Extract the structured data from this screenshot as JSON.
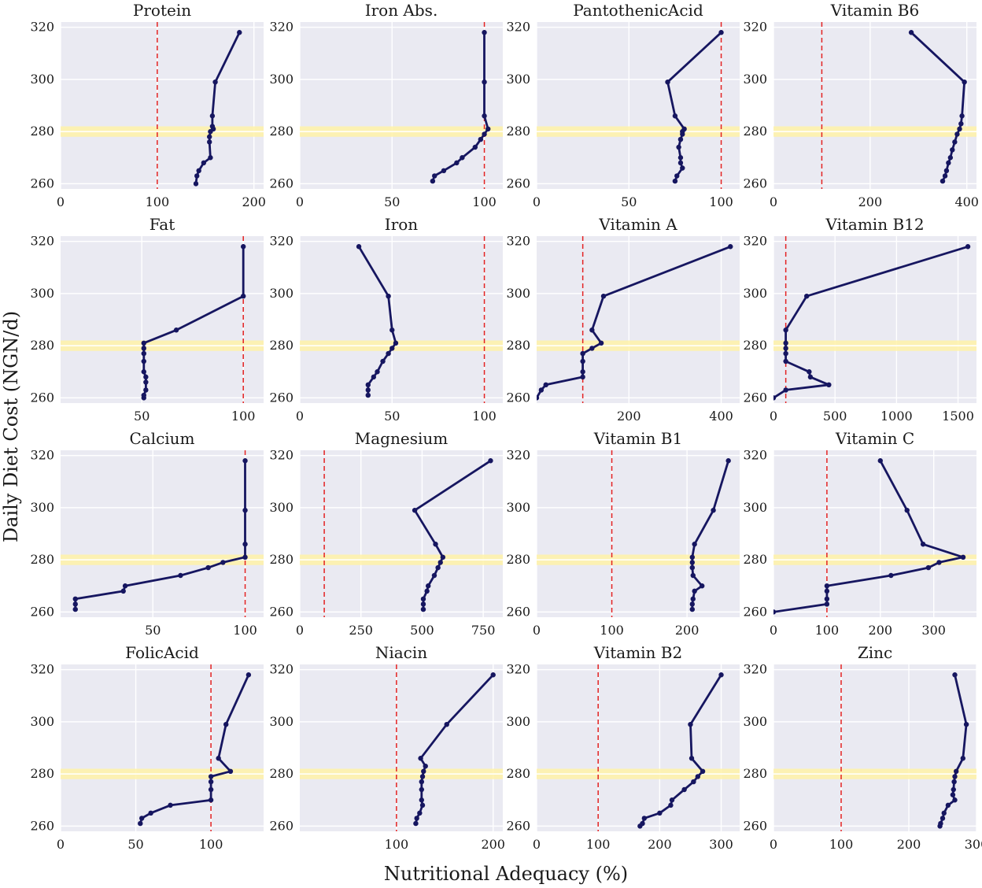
{
  "figure": {
    "xlabel": "Nutritional Adequacy (%)",
    "ylabel": "Daily Diet Cost (NGN/d)",
    "colors": {
      "background": "#eaeaf2",
      "grid": "#ffffff",
      "line": "#161660",
      "marker": "#161660",
      "reference": "#e32222",
      "band": "#fff2a8"
    }
  },
  "chart_data": [
    {
      "type": "line",
      "title": "Protein",
      "ylim": [
        258,
        322
      ],
      "yticks": [
        260,
        280,
        300,
        320
      ],
      "xlim": [
        0,
        210
      ],
      "xticks": [
        0,
        100,
        200
      ],
      "ref_x": 100,
      "band_y": [
        278,
        282
      ],
      "series": [
        {
          "name": "Protein",
          "x": [
            185,
            160,
            157,
            157,
            158,
            155,
            154,
            154,
            155,
            148,
            143,
            141,
            140
          ],
          "y": [
            318,
            299,
            286,
            282,
            281,
            280,
            278,
            276,
            270,
            268,
            265,
            263,
            260
          ]
        }
      ]
    },
    {
      "type": "line",
      "title": "Iron Abs.",
      "ylim": [
        258,
        322
      ],
      "yticks": [
        260,
        280,
        300,
        320
      ],
      "xlim": [
        0,
        110
      ],
      "xticks": [
        0,
        50,
        100
      ],
      "ref_x": 100,
      "band_y": [
        278,
        282
      ],
      "series": [
        {
          "name": "Iron Abs.",
          "x": [
            100,
            100,
            100,
            102,
            100,
            98,
            95,
            88,
            85,
            78,
            73,
            72
          ],
          "y": [
            318,
            299,
            286,
            281,
            279,
            277,
            274,
            270,
            268,
            265,
            263,
            261
          ]
        }
      ]
    },
    {
      "type": "line",
      "title": "PantothenicAcid",
      "ylim": [
        258,
        322
      ],
      "yticks": [
        260,
        280,
        300,
        320
      ],
      "xlim": [
        0,
        110
      ],
      "xticks": [
        0,
        50,
        100
      ],
      "ref_x": 100,
      "band_y": [
        278,
        282
      ],
      "series": [
        {
          "name": "PantothenicAcid",
          "x": [
            100,
            71,
            75,
            80,
            79,
            79,
            78,
            77,
            78,
            78,
            79,
            76,
            75
          ],
          "y": [
            318,
            299,
            286,
            281,
            280,
            279,
            277,
            274,
            270,
            268,
            266,
            263,
            261
          ]
        }
      ]
    },
    {
      "type": "line",
      "title": "Vitamin B6",
      "ylim": [
        258,
        322
      ],
      "yticks": [
        260,
        280,
        300,
        320
      ],
      "xlim": [
        0,
        420
      ],
      "xticks": [
        0,
        200,
        400
      ],
      "ref_x": 100,
      "band_y": [
        278,
        282
      ],
      "series": [
        {
          "name": "Vitamin B6",
          "x": [
            285,
            395,
            390,
            388,
            385,
            380,
            375,
            370,
            366,
            362,
            358,
            355,
            350
          ],
          "y": [
            318,
            299,
            286,
            283,
            281,
            279,
            276,
            273,
            270,
            268,
            265,
            263,
            261
          ]
        }
      ]
    },
    {
      "type": "line",
      "title": "Fat",
      "ylim": [
        258,
        322
      ],
      "yticks": [
        260,
        280,
        300,
        320
      ],
      "xlim": [
        10,
        110
      ],
      "xticks": [
        50,
        100
      ],
      "ref_x": 100,
      "band_y": [
        278,
        282
      ],
      "series": [
        {
          "name": "Fat",
          "x": [
            100,
            100,
            67,
            51,
            51,
            51,
            51,
            51,
            52,
            52,
            52,
            51,
            51
          ],
          "y": [
            318,
            299,
            286,
            281,
            279,
            277,
            274,
            270,
            268,
            266,
            263,
            261,
            260
          ]
        }
      ]
    },
    {
      "type": "line",
      "title": "Iron",
      "ylim": [
        258,
        322
      ],
      "yticks": [
        260,
        280,
        300,
        320
      ],
      "xlim": [
        0,
        110
      ],
      "xticks": [
        0,
        50,
        100
      ],
      "ref_x": 100,
      "band_y": [
        278,
        282
      ],
      "series": [
        {
          "name": "Iron",
          "x": [
            32,
            48,
            50,
            52,
            50,
            48,
            45,
            42,
            40,
            37,
            37,
            37
          ],
          "y": [
            318,
            299,
            286,
            281,
            279,
            277,
            274,
            270,
            268,
            265,
            263,
            261
          ]
        }
      ]
    },
    {
      "type": "line",
      "title": "Vitamin A",
      "ylim": [
        258,
        322
      ],
      "yticks": [
        260,
        280,
        300,
        320
      ],
      "xlim": [
        0,
        440
      ],
      "xticks": [
        200,
        400
      ],
      "ref_x": 100,
      "band_y": [
        278,
        282
      ],
      "series": [
        {
          "name": "Vitamin A",
          "x": [
            420,
            145,
            120,
            140,
            120,
            100,
            100,
            100,
            100,
            20,
            10,
            0
          ],
          "y": [
            318,
            299,
            286,
            281,
            279,
            277,
            274,
            270,
            268,
            265,
            263,
            260
          ]
        }
      ]
    },
    {
      "type": "line",
      "title": "Vitamin B12",
      "ylim": [
        258,
        322
      ],
      "yticks": [
        260,
        280,
        300,
        320
      ],
      "xlim": [
        0,
        1650
      ],
      "xticks": [
        0,
        500,
        1000,
        1500
      ],
      "ref_x": 100,
      "band_y": [
        278,
        282
      ],
      "series": [
        {
          "name": "Vitamin B12",
          "x": [
            1580,
            270,
            100,
            100,
            100,
            100,
            100,
            290,
            300,
            450,
            100,
            0
          ],
          "y": [
            318,
            299,
            286,
            281,
            279,
            277,
            274,
            270,
            268,
            265,
            263,
            260
          ]
        }
      ]
    },
    {
      "type": "line",
      "title": "Calcium",
      "ylim": [
        258,
        322
      ],
      "yticks": [
        260,
        280,
        300,
        320
      ],
      "xlim": [
        0,
        110
      ],
      "xticks": [
        50,
        100
      ],
      "ref_x": 100,
      "band_y": [
        278,
        282
      ],
      "series": [
        {
          "name": "Calcium",
          "x": [
            100,
            100,
            100,
            100,
            88,
            80,
            65,
            35,
            34,
            8,
            8,
            8
          ],
          "y": [
            318,
            299,
            286,
            281,
            279,
            277,
            274,
            270,
            268,
            265,
            263,
            261
          ]
        }
      ]
    },
    {
      "type": "line",
      "title": "Magnesium",
      "ylim": [
        258,
        322
      ],
      "yticks": [
        260,
        280,
        300,
        320
      ],
      "xlim": [
        0,
        830
      ],
      "xticks": [
        0,
        250,
        500,
        750
      ],
      "ref_x": 100,
      "band_y": [
        278,
        282
      ],
      "series": [
        {
          "name": "Magnesium",
          "x": [
            780,
            470,
            555,
            585,
            575,
            565,
            550,
            525,
            520,
            505,
            505,
            505
          ],
          "y": [
            318,
            299,
            286,
            281,
            279,
            277,
            274,
            270,
            268,
            265,
            263,
            261
          ]
        }
      ]
    },
    {
      "type": "line",
      "title": "Vitamin B1",
      "ylim": [
        258,
        322
      ],
      "yticks": [
        260,
        280,
        300,
        320
      ],
      "xlim": [
        0,
        270
      ],
      "xticks": [
        0,
        100,
        200
      ],
      "ref_x": 100,
      "band_y": [
        278,
        282
      ],
      "series": [
        {
          "name": "Vitamin B1",
          "x": [
            255,
            235,
            210,
            207,
            207,
            207,
            208,
            220,
            210,
            208,
            207,
            207
          ],
          "y": [
            318,
            299,
            286,
            281,
            279,
            277,
            274,
            270,
            268,
            265,
            263,
            261
          ]
        }
      ]
    },
    {
      "type": "line",
      "title": "Vitamin C",
      "ylim": [
        258,
        322
      ],
      "yticks": [
        260,
        280,
        300,
        320
      ],
      "xlim": [
        0,
        380
      ],
      "xticks": [
        0,
        100,
        200,
        300
      ],
      "ref_x": 100,
      "band_y": [
        278,
        282
      ],
      "series": [
        {
          "name": "Vitamin C",
          "x": [
            200,
            250,
            280,
            355,
            310,
            290,
            220,
            100,
            100,
            100,
            100,
            0
          ],
          "y": [
            318,
            299,
            286,
            281,
            279,
            277,
            274,
            270,
            268,
            265,
            263,
            260
          ]
        }
      ]
    },
    {
      "type": "line",
      "title": "FolicAcid",
      "ylim": [
        258,
        322
      ],
      "yticks": [
        260,
        280,
        300,
        320
      ],
      "xlim": [
        0,
        135
      ],
      "xticks": [
        0,
        50,
        100
      ],
      "ref_x": 100,
      "band_y": [
        278,
        282
      ],
      "series": [
        {
          "name": "FolicAcid",
          "x": [
            125,
            110,
            105,
            113,
            100,
            100,
            100,
            100,
            73,
            60,
            54,
            53
          ],
          "y": [
            318,
            299,
            286,
            281,
            279,
            277,
            274,
            270,
            268,
            265,
            263,
            261
          ]
        }
      ]
    },
    {
      "type": "line",
      "title": "Niacin",
      "ylim": [
        258,
        322
      ],
      "yticks": [
        260,
        280,
        300,
        320
      ],
      "xlim": [
        0,
        210
      ],
      "xticks": [
        100,
        200
      ],
      "ref_x": 100,
      "band_y": [
        278,
        282
      ],
      "series": [
        {
          "name": "Niacin",
          "x": [
            200,
            152,
            125,
            130,
            128,
            127,
            126,
            126,
            126,
            127,
            124,
            121,
            120
          ],
          "y": [
            318,
            299,
            286,
            283,
            281,
            279,
            277,
            274,
            270,
            268,
            265,
            263,
            261
          ]
        }
      ]
    },
    {
      "type": "line",
      "title": "Vitamin B2",
      "ylim": [
        258,
        322
      ],
      "yticks": [
        260,
        280,
        300,
        320
      ],
      "xlim": [
        0,
        330
      ],
      "xticks": [
        0,
        100,
        200,
        300
      ],
      "ref_x": 100,
      "band_y": [
        278,
        282
      ],
      "series": [
        {
          "name": "Vitamin B2",
          "x": [
            300,
            250,
            252,
            270,
            262,
            255,
            240,
            220,
            218,
            200,
            175,
            172,
            168
          ],
          "y": [
            318,
            299,
            286,
            281,
            279,
            277,
            274,
            270,
            268,
            265,
            263,
            261,
            260
          ]
        }
      ]
    },
    {
      "type": "line",
      "title": "Zinc",
      "ylim": [
        258,
        322
      ],
      "yticks": [
        260,
        280,
        300,
        320
      ],
      "xlim": [
        0,
        300
      ],
      "xticks": [
        0,
        100,
        200,
        300
      ],
      "ref_x": 100,
      "band_y": [
        278,
        282
      ],
      "series": [
        {
          "name": "Zinc",
          "x": [
            268,
            285,
            280,
            270,
            268,
            267,
            266,
            265,
            268,
            258,
            252,
            250,
            247,
            246
          ],
          "y": [
            318,
            299,
            286,
            281,
            279,
            277,
            274,
            272,
            270,
            268,
            265,
            263,
            261,
            260
          ]
        }
      ]
    }
  ]
}
